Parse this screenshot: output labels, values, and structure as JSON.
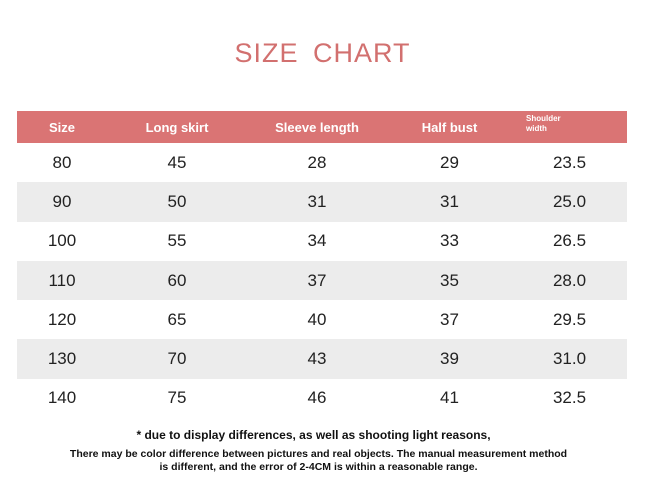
{
  "title": "SIZE CHART",
  "table": {
    "headers": [
      "Size",
      "Long skirt",
      "Sleeve length",
      "Half bust",
      "Shoulder width"
    ],
    "shoulder_header_line1": "Shoulder",
    "shoulder_header_line2": "width",
    "rows": [
      [
        "80",
        "45",
        "28",
        "29",
        "23.5"
      ],
      [
        "90",
        "50",
        "31",
        "31",
        "25.0"
      ],
      [
        "100",
        "55",
        "34",
        "33",
        "26.5"
      ],
      [
        "110",
        "60",
        "37",
        "35",
        "28.0"
      ],
      [
        "120",
        "65",
        "40",
        "37",
        "29.5"
      ],
      [
        "130",
        "70",
        "43",
        "39",
        "31.0"
      ],
      [
        "140",
        "75",
        "46",
        "41",
        "32.5"
      ]
    ]
  },
  "notes": {
    "line1": "* due to display differences, as well as shooting light reasons,",
    "line2": "There may be color difference between pictures and real objects. The manual measurement method",
    "line3": "is different, and the error of 2-4CM is within a reasonable range."
  },
  "colors": {
    "header_bg": "#da7474",
    "title": "#d2706f",
    "alt_row_bg": "#ececec"
  }
}
